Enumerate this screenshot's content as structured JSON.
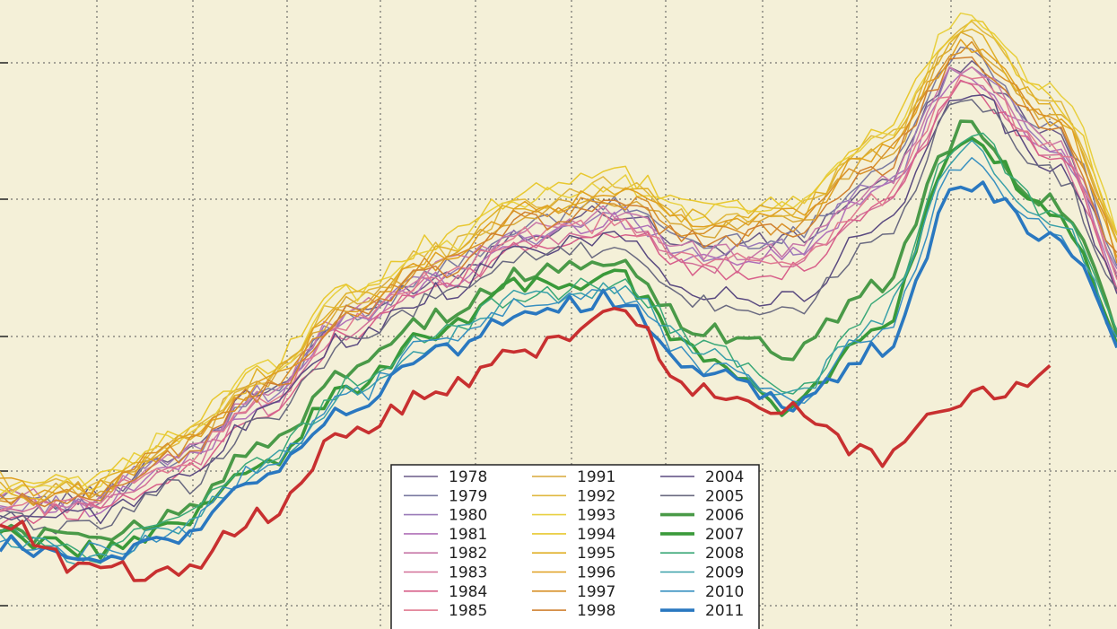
{
  "chart_data": {
    "type": "line",
    "title": "",
    "xlabel": "",
    "ylabel": "",
    "grid": true,
    "legend_position": "bottom-center",
    "series": [
      {
        "name": "1978",
        "color": "#6a5a88",
        "thick": false,
        "values": [
          0.4,
          0.52,
          0.75,
          1.08,
          1.5,
          1.7,
          1.95,
          2.06,
          1.86,
          1.9,
          2.2,
          2.85,
          2.45,
          1.6,
          null
        ]
      },
      {
        "name": "1979",
        "color": "#7a7aa0",
        "thick": false,
        "values": [
          0.55,
          0.48,
          0.7,
          1.05,
          1.5,
          1.74,
          1.98,
          2.1,
          1.88,
          1.92,
          2.28,
          2.92,
          2.5,
          1.65,
          null
        ]
      },
      {
        "name": "1980",
        "color": "#9a7ab8",
        "thick": false,
        "values": [
          0.45,
          0.5,
          0.73,
          1.07,
          1.48,
          1.7,
          1.93,
          2.04,
          1.82,
          1.86,
          2.18,
          2.84,
          2.42,
          1.58,
          null
        ]
      },
      {
        "name": "1981",
        "color": "#b070b8",
        "thick": false,
        "values": [
          0.48,
          0.46,
          0.68,
          1.02,
          1.46,
          1.68,
          1.9,
          2.02,
          1.8,
          1.82,
          2.15,
          2.8,
          2.38,
          1.55,
          null
        ]
      },
      {
        "name": "1982",
        "color": "#c878a8",
        "thick": false,
        "values": [
          0.52,
          0.5,
          0.72,
          1.1,
          1.52,
          1.75,
          1.96,
          2.05,
          1.84,
          1.84,
          2.2,
          2.86,
          2.44,
          1.6,
          null
        ]
      },
      {
        "name": "1983",
        "color": "#d27098",
        "thick": false,
        "values": [
          0.42,
          0.46,
          0.66,
          1.0,
          1.42,
          1.66,
          1.88,
          1.98,
          1.76,
          1.78,
          2.1,
          2.76,
          2.36,
          1.52,
          null
        ]
      },
      {
        "name": "1984",
        "color": "#d8608a",
        "thick": false,
        "values": [
          0.4,
          0.44,
          0.64,
          0.98,
          1.4,
          1.64,
          1.86,
          1.96,
          1.74,
          1.74,
          2.08,
          2.72,
          2.34,
          1.5,
          null
        ]
      },
      {
        "name": "1985",
        "color": "#e07a90",
        "thick": false,
        "values": [
          0.46,
          0.48,
          0.7,
          1.04,
          1.46,
          1.7,
          1.92,
          2.0,
          1.78,
          1.8,
          2.12,
          2.78,
          2.4,
          1.56,
          null
        ]
      },
      {
        "name": "1991",
        "color": "#d8a838",
        "thick": false,
        "values": [
          0.5,
          0.55,
          0.8,
          1.15,
          1.55,
          1.8,
          2.05,
          2.12,
          1.94,
          2.0,
          2.35,
          2.98,
          2.58,
          1.7,
          null
        ]
      },
      {
        "name": "1992",
        "color": "#e0b840",
        "thick": false,
        "values": [
          0.6,
          0.56,
          0.82,
          1.18,
          1.58,
          1.84,
          2.1,
          2.2,
          2.0,
          2.05,
          2.42,
          3.05,
          2.65,
          1.75,
          null
        ]
      },
      {
        "name": "1993",
        "color": "#e8d040",
        "thick": false,
        "values": [
          0.52,
          0.58,
          0.84,
          1.2,
          1.62,
          1.86,
          2.12,
          2.22,
          2.04,
          2.08,
          2.45,
          3.1,
          2.7,
          1.8,
          null
        ]
      },
      {
        "name": "1994",
        "color": "#e8c830",
        "thick": false,
        "values": [
          0.56,
          0.6,
          0.86,
          1.22,
          1.64,
          1.9,
          2.16,
          2.26,
          2.08,
          2.1,
          2.48,
          3.08,
          2.66,
          1.78,
          null
        ]
      },
      {
        "name": "1995",
        "color": "#e0b028",
        "thick": false,
        "values": [
          0.54,
          0.56,
          0.8,
          1.16,
          1.58,
          1.82,
          2.08,
          2.18,
          2.02,
          2.04,
          2.4,
          3.0,
          2.6,
          1.72,
          null
        ]
      },
      {
        "name": "1996",
        "color": "#e0a020",
        "thick": false,
        "values": [
          0.58,
          0.54,
          0.78,
          1.12,
          1.56,
          1.8,
          2.06,
          2.16,
          1.98,
          2.02,
          2.38,
          2.96,
          2.56,
          1.7,
          null
        ]
      },
      {
        "name": "1997",
        "color": "#d89028",
        "thick": false,
        "values": [
          0.5,
          0.52,
          0.76,
          1.1,
          1.52,
          1.78,
          2.02,
          2.12,
          1.94,
          1.98,
          2.34,
          2.94,
          2.54,
          1.68,
          null
        ]
      },
      {
        "name": "1998",
        "color": "#d08030",
        "thick": false,
        "values": [
          0.48,
          0.5,
          0.74,
          1.08,
          1.5,
          1.74,
          2.0,
          2.08,
          1.9,
          1.94,
          2.3,
          2.9,
          2.5,
          1.66,
          null
        ]
      },
      {
        "name": "2004",
        "color": "#5a4a80",
        "thick": false,
        "values": [
          0.42,
          0.4,
          0.6,
          0.96,
          1.38,
          1.62,
          1.84,
          1.92,
          1.62,
          1.58,
          1.96,
          2.7,
          2.3,
          1.48,
          null
        ]
      },
      {
        "name": "2005",
        "color": "#6a6a80",
        "thick": false,
        "values": [
          0.38,
          0.36,
          0.56,
          0.92,
          1.34,
          1.58,
          1.8,
          1.86,
          1.56,
          1.5,
          1.9,
          2.66,
          2.26,
          1.46,
          null
        ]
      },
      {
        "name": "2006",
        "color": "#4a9a48",
        "thick": true,
        "values": [
          0.34,
          0.26,
          0.42,
          0.8,
          1.2,
          1.48,
          1.72,
          1.78,
          1.4,
          1.3,
          1.66,
          2.5,
          2.1,
          1.3,
          null
        ]
      },
      {
        "name": "2007",
        "color": "#3a9a3a",
        "thick": true,
        "values": [
          0.3,
          0.22,
          0.36,
          0.7,
          1.1,
          1.42,
          1.66,
          1.7,
          1.3,
          1.0,
          1.44,
          2.44,
          2.06,
          1.2,
          null
        ]
      },
      {
        "name": "2008",
        "color": "#3aa878",
        "thick": false,
        "values": [
          0.32,
          0.2,
          0.38,
          0.72,
          1.12,
          1.4,
          1.62,
          1.66,
          1.34,
          1.1,
          1.54,
          2.48,
          2.04,
          1.24,
          null
        ]
      },
      {
        "name": "2009",
        "color": "#38a0a8",
        "thick": false,
        "values": [
          0.3,
          0.18,
          0.34,
          0.68,
          1.08,
          1.36,
          1.6,
          1.64,
          1.3,
          1.06,
          1.48,
          2.4,
          2.0,
          1.22,
          null
        ]
      },
      {
        "name": "2010",
        "color": "#3890c0",
        "thick": false,
        "values": [
          0.28,
          0.22,
          0.32,
          0.66,
          1.06,
          1.36,
          1.56,
          1.62,
          1.22,
          1.04,
          1.4,
          2.32,
          1.96,
          1.2,
          null
        ]
      },
      {
        "name": "2011",
        "color": "#2a78c0",
        "thick": true,
        "values": [
          0.26,
          0.16,
          0.3,
          0.62,
          1.0,
          1.3,
          1.52,
          1.58,
          1.2,
          1.02,
          1.3,
          2.22,
          1.92,
          1.18,
          null
        ]
      },
      {
        "name": "",
        "color": "#c83030",
        "thick": true,
        "values": [
          0.38,
          0.12,
          0.1,
          0.42,
          0.86,
          1.1,
          1.3,
          1.52,
          1.08,
          0.98,
          0.72,
          1.04,
          1.18,
          null,
          null
        ]
      }
    ]
  }
}
